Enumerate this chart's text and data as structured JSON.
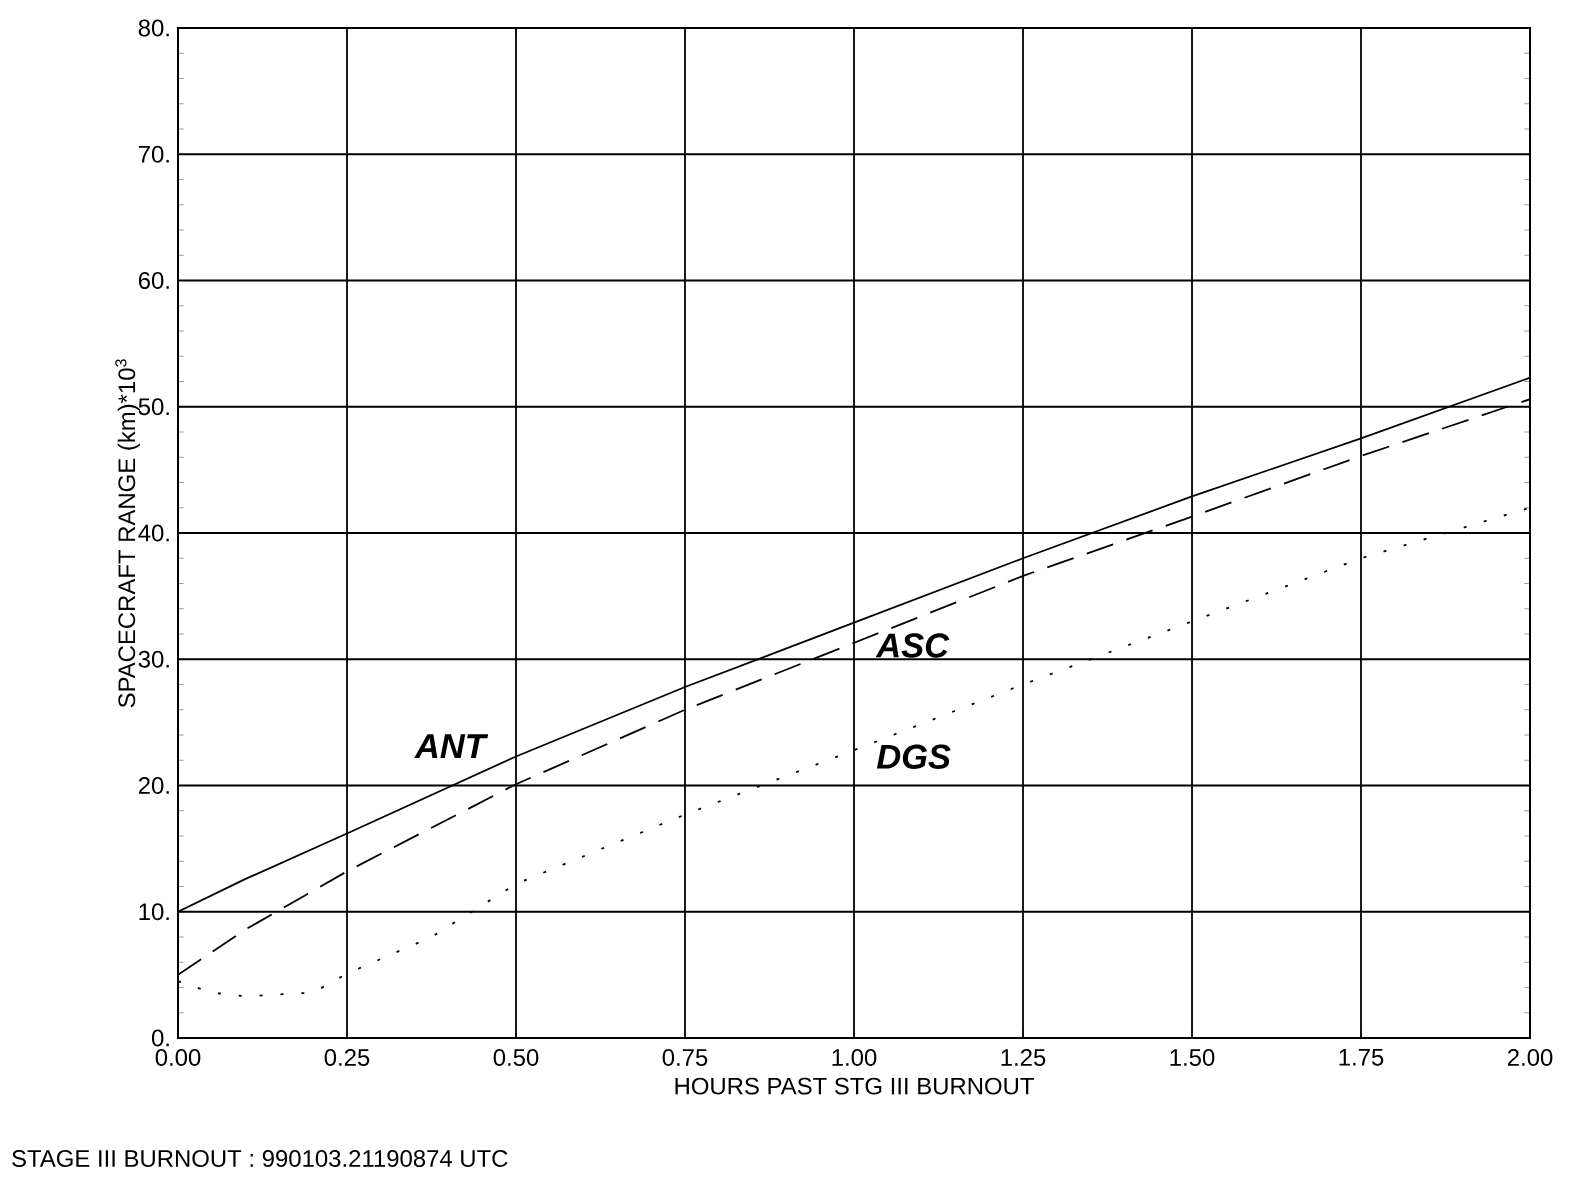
{
  "chart_data": {
    "type": "line",
    "xlabel": "HOURS PAST STG III BURNOUT",
    "ylabel": "SPACECRAFT RANGE (km)*10$^{3}$",
    "xlim": [
      0,
      2
    ],
    "ylim": [
      0,
      80
    ],
    "xticks": [
      {
        "value": 0,
        "label": "0.00"
      },
      {
        "value": 0.25,
        "label": "0.25"
      },
      {
        "value": 0.5,
        "label": "0.50"
      },
      {
        "value": 0.75,
        "label": "0.75"
      },
      {
        "value": 1,
        "label": "1.00"
      },
      {
        "value": 1.25,
        "label": "1.25"
      },
      {
        "value": 1.5,
        "label": "1.50"
      },
      {
        "value": 1.75,
        "label": "1.75"
      },
      {
        "value": 2,
        "label": "2.00"
      }
    ],
    "yticks": [
      {
        "value": 0,
        "label": "0."
      },
      {
        "value": 10,
        "label": "10."
      },
      {
        "value": 20,
        "label": "20."
      },
      {
        "value": 30,
        "label": "30."
      },
      {
        "value": 40,
        "label": "40."
      },
      {
        "value": 50,
        "label": "50."
      },
      {
        "value": 60,
        "label": "60."
      },
      {
        "value": 70,
        "label": "70."
      },
      {
        "value": 80,
        "label": "80."
      }
    ],
    "grid": true,
    "legend": false,
    "marker": "none",
    "x": [
      0,
      0.1,
      0.25,
      0.5,
      0.75,
      1,
      1.25,
      1.5,
      1.75,
      2
    ],
    "series": [
      {
        "name": "ANT",
        "color": "#000000",
        "line_style": "solid",
        "values": [
          10,
          12.6,
          16.2,
          22.3,
          27.8,
          32.9,
          38,
          42.9,
          47.5,
          52.3
        ]
      },
      {
        "name": "ASC",
        "color": "#000000",
        "line_style": "dashed",
        "values": [
          5,
          8.6,
          13.2,
          20.1,
          26,
          31.3,
          36.6,
          41.3,
          46.1,
          50.6
        ]
      },
      {
        "name": "DGS",
        "color": "#000000",
        "line_style": "dotted",
        "x": [
          0,
          0.05,
          0.1,
          0.2,
          0.25,
          0.375,
          0.5,
          0.75,
          1,
          1.25,
          1.5,
          1.75,
          2
        ],
        "values": [
          4.5,
          3.6,
          3.3,
          3.6,
          5.1,
          8,
          12.2,
          17.7,
          22.8,
          28,
          33,
          38,
          42
        ]
      }
    ],
    "annotations": [
      "STAGE III BURNOUT : 990103.21190874 UTC"
    ]
  }
}
